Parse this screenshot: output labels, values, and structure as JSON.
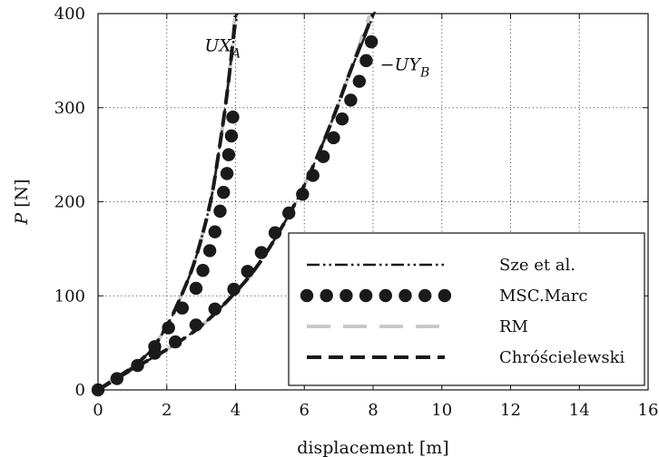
{
  "chart_data": {
    "type": "line",
    "xlabel": "displacement [m]",
    "ylabel": "P [N]",
    "xlim": [
      0,
      16
    ],
    "ylim": [
      0,
      400
    ],
    "xticks": [
      0,
      2,
      4,
      6,
      8,
      10,
      12,
      14,
      16
    ],
    "yticks": [
      0,
      100,
      200,
      300,
      400
    ],
    "grid": true,
    "grid_style": "dotted",
    "legend_position": "bottom-right",
    "annotations": [
      {
        "text": "UX_A",
        "x": 3.1,
        "y": 360
      },
      {
        "text": "−UY_B",
        "x": 8.2,
        "y": 340
      }
    ],
    "curve_groups": [
      {
        "id": "UXA",
        "series": [
          {
            "name": "Sze et al.",
            "style": "dashdotdot",
            "color": "#1a1a1a",
            "x": [
              0,
              0.5,
              1.1,
              1.6,
              2.0,
              2.3,
              2.7,
              3.0,
              3.3,
              3.5,
              3.7,
              3.85,
              4.05
            ],
            "y": [
              0,
              12,
              27,
              45,
              68,
              90,
              125,
              160,
              205,
              250,
              300,
              345,
              400
            ]
          },
          {
            "name": "MSC.Marc",
            "style": "markers",
            "color": "#1a1a1a",
            "x": [
              0,
              0.55,
              1.15,
              1.65,
              2.05,
              2.45,
              2.85,
              3.05,
              3.25,
              3.4,
              3.55,
              3.65,
              3.75,
              3.8,
              3.88,
              3.92
            ],
            "y": [
              0,
              12,
              26,
              46,
              66,
              87,
              108,
              127,
              148,
              168,
              190,
              210,
              230,
              250,
              270,
              290
            ]
          },
          {
            "name": "RM",
            "style": "dashed-light",
            "color": "#c8c8c8",
            "x": [
              0,
              0.5,
              1.1,
              1.6,
              2.0,
              2.3,
              2.7,
              3.0,
              3.3,
              3.5,
              3.7,
              3.85,
              3.98
            ],
            "y": [
              0,
              12,
              27,
              45,
              68,
              90,
              125,
              160,
              205,
              250,
              300,
              345,
              395
            ]
          },
          {
            "name": "Chróścielewski",
            "style": "dashed-heavy",
            "color": "#1a1a1a",
            "x": [
              0,
              0.5,
              1.1,
              1.6,
              2.0,
              2.3,
              2.7,
              3.0,
              3.3,
              3.5,
              3.7,
              3.85,
              4.0
            ],
            "y": [
              0,
              12,
              27,
              45,
              68,
              90,
              125,
              160,
              205,
              250,
              300,
              345,
              398
            ]
          }
        ]
      },
      {
        "id": "UYB",
        "series": [
          {
            "name": "Sze et al.",
            "style": "dashdotdot",
            "color": "#1a1a1a",
            "x": [
              0,
              1.0,
              2.0,
              3.0,
              3.9,
              4.6,
              5.3,
              5.9,
              6.4,
              6.9,
              7.3,
              7.7,
              8.05
            ],
            "y": [
              0,
              22,
              43,
              68,
              100,
              130,
              170,
              210,
              250,
              295,
              335,
              370,
              402
            ]
          },
          {
            "name": "MSC.Marc",
            "style": "markers",
            "color": "#1a1a1a",
            "x": [
              1.65,
              2.25,
              2.85,
              3.4,
              3.95,
              4.35,
              4.75,
              5.15,
              5.55,
              5.95,
              6.25,
              6.55,
              6.85,
              7.1,
              7.35,
              7.6,
              7.8,
              7.95
            ],
            "y": [
              39,
              51,
              69,
              86,
              107,
              126,
              146,
              167,
              188,
              208,
              228,
              248,
              268,
              288,
              308,
              328,
              350,
              370
            ]
          },
          {
            "name": "RM",
            "style": "dashed-light",
            "color": "#c8c8c8",
            "x": [
              0,
              1.0,
              2.0,
              3.0,
              3.9,
              4.6,
              5.3,
              5.9,
              6.4,
              6.9,
              7.3,
              7.65,
              7.9
            ],
            "y": [
              0,
              22,
              43,
              68,
              100,
              130,
              170,
              210,
              250,
              295,
              335,
              372,
              398
            ]
          },
          {
            "name": "Chróścielewski",
            "style": "dashed-heavy",
            "color": "#1a1a1a",
            "x": [
              0,
              1.0,
              2.0,
              3.0,
              3.9,
              4.6,
              5.3,
              5.9,
              6.4,
              6.9,
              7.3,
              7.7,
              8.0
            ],
            "y": [
              0,
              22,
              43,
              68,
              100,
              130,
              170,
              210,
              250,
              295,
              335,
              372,
              400
            ]
          }
        ]
      }
    ],
    "legend": [
      {
        "label": "Sze et al.",
        "style": "dashdotdot"
      },
      {
        "label": "MSC.Marc",
        "style": "markers"
      },
      {
        "label": "RM",
        "style": "dashed-light"
      },
      {
        "label": "Chróścielewski",
        "style": "dashed-heavy"
      }
    ]
  }
}
